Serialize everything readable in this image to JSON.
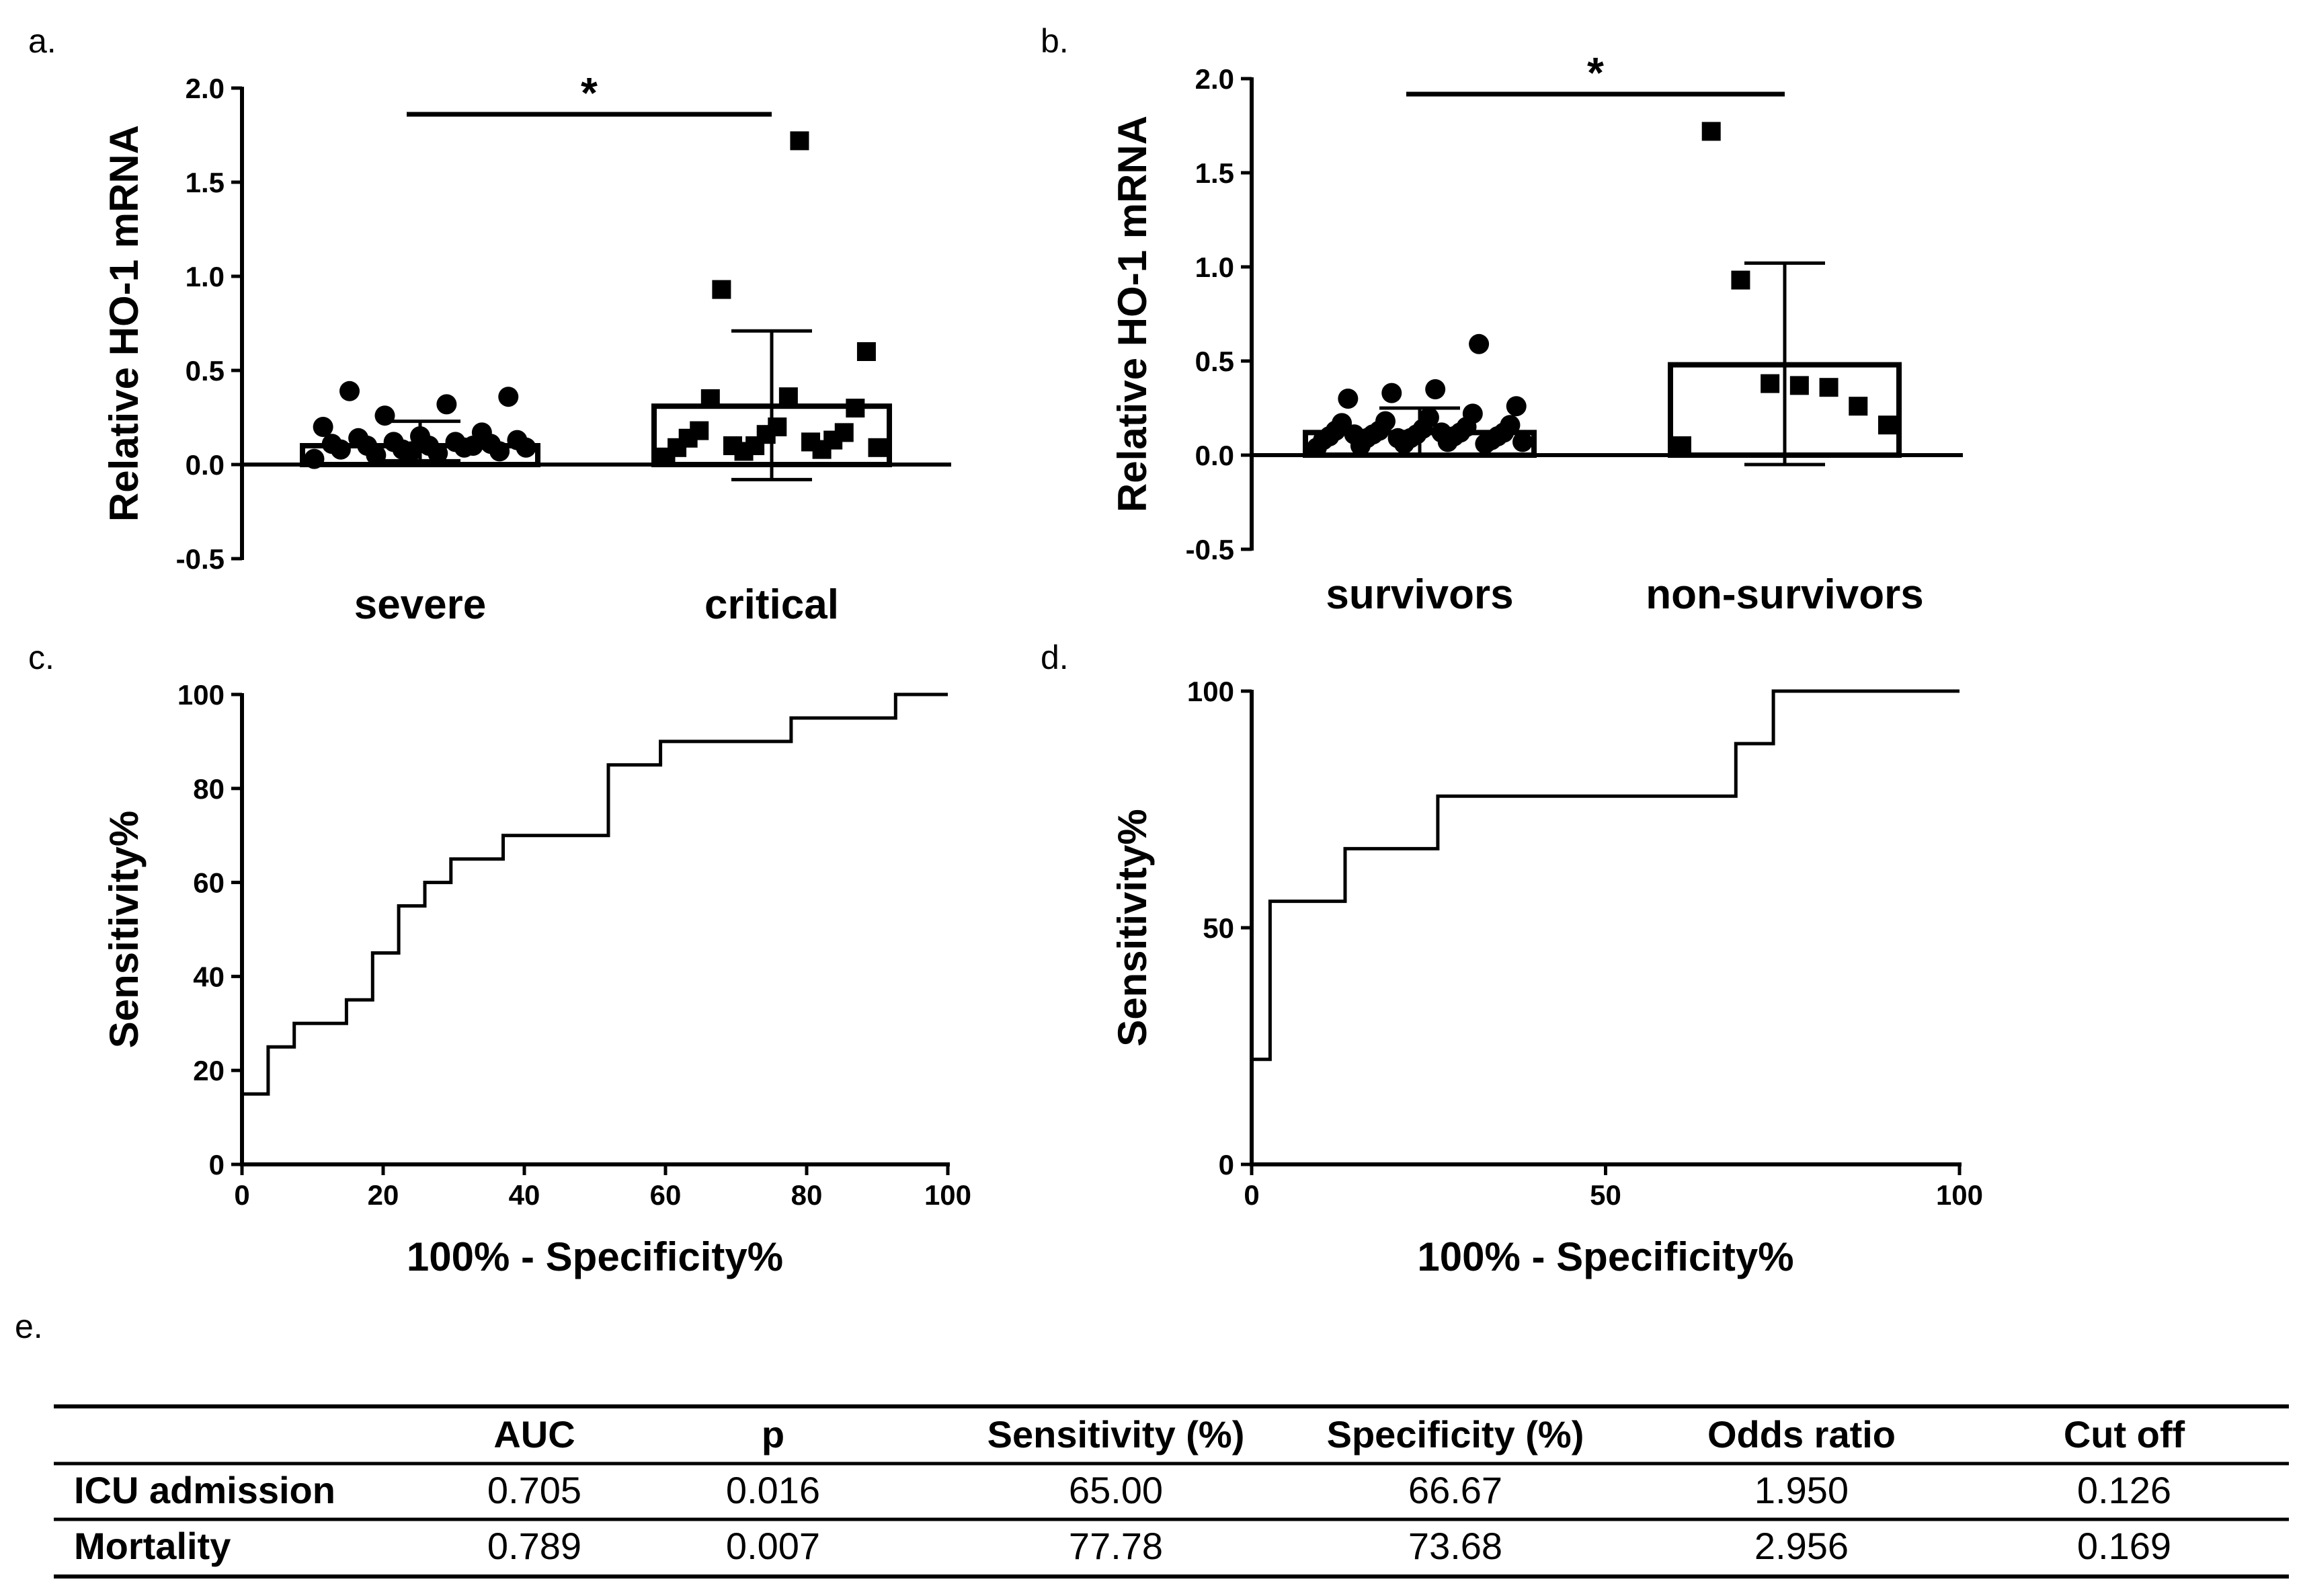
{
  "panels": {
    "a": "a.",
    "b": "b.",
    "c": "c.",
    "d": "d.",
    "e": "e."
  },
  "chart_data": [
    {
      "panel": "a",
      "type": "scatter",
      "title": "",
      "ylabel": "Relative HO-1 mRNA",
      "categories": [
        "severe",
        "critical"
      ],
      "ylim": [
        -0.5,
        2.0
      ],
      "yticks": [
        "2.0",
        "1.5",
        "1.0",
        "0.5",
        "0.0",
        "-0.5"
      ],
      "bar_means": [
        0.1,
        0.31
      ],
      "sd_upper": [
        0.23,
        0.71
      ],
      "sd_lower": [
        0.02,
        -0.08
      ],
      "significance": "*",
      "series": [
        {
          "name": "severe",
          "marker": "circle",
          "values": [
            0.03,
            0.05,
            0.06,
            0.07,
            0.08,
            0.08,
            0.09,
            0.09,
            0.1,
            0.1,
            0.11,
            0.11,
            0.12,
            0.12,
            0.13,
            0.14,
            0.15,
            0.17,
            0.2,
            0.26,
            0.32,
            0.36,
            0.39,
            0.07,
            0.1
          ]
        },
        {
          "name": "critical",
          "marker": "square",
          "values": [
            0.04,
            0.07,
            0.08,
            0.09,
            0.1,
            0.13,
            0.14,
            0.16,
            0.17,
            0.18,
            0.2,
            0.3,
            0.35,
            0.36,
            0.6,
            0.93,
            1.72,
            0.09,
            0.1,
            0.12
          ]
        }
      ]
    },
    {
      "panel": "b",
      "type": "scatter",
      "title": "",
      "ylabel": "Relative HO-1 mRNA",
      "categories": [
        "survivors",
        "non-survivors"
      ],
      "ylim": [
        -0.5,
        2.0
      ],
      "yticks": [
        "2.0",
        "1.5",
        "1.0",
        "0.5",
        "0.0",
        "-0.5"
      ],
      "bar_means": [
        0.12,
        0.48
      ],
      "sd_upper": [
        0.25,
        1.02
      ],
      "sd_lower": [
        0.0,
        -0.05
      ],
      "significance": "*",
      "series": [
        {
          "name": "survivors",
          "marker": "circle",
          "values": [
            0.04,
            0.05,
            0.06,
            0.07,
            0.08,
            0.08,
            0.09,
            0.09,
            0.1,
            0.1,
            0.1,
            0.11,
            0.11,
            0.12,
            0.12,
            0.13,
            0.13,
            0.14,
            0.15,
            0.16,
            0.17,
            0.18,
            0.2,
            0.22,
            0.26,
            0.3,
            0.33,
            0.35,
            0.59,
            0.07,
            0.11,
            0.09,
            0.12,
            0.06
          ]
        },
        {
          "name": "non-survivors",
          "marker": "square",
          "values": [
            0.05,
            0.16,
            0.26,
            0.36,
            0.37,
            0.38,
            0.93,
            1.72
          ]
        }
      ]
    },
    {
      "panel": "c",
      "type": "line",
      "title": "",
      "xlabel": "100% - Specificity%",
      "ylabel": "Sensitivity%",
      "xlim": [
        0,
        100
      ],
      "ylim": [
        0,
        100
      ],
      "xticks": [
        "0",
        "20",
        "40",
        "60",
        "80",
        "100"
      ],
      "yticks": [
        "100",
        "80",
        "60",
        "40",
        "20",
        "0"
      ],
      "x": [
        0,
        3.7,
        3.7,
        7.4,
        7.4,
        14.8,
        14.8,
        18.5,
        18.5,
        22.2,
        22.2,
        25.9,
        25.9,
        29.6,
        29.6,
        37,
        37,
        51.9,
        51.9,
        59.3,
        59.3,
        77.8,
        77.8,
        92.6,
        92.6,
        100
      ],
      "y": [
        15,
        15,
        25,
        25,
        30,
        30,
        35,
        35,
        45,
        45,
        55,
        55,
        60,
        60,
        65,
        65,
        70,
        70,
        85,
        85,
        90,
        90,
        95,
        95,
        100,
        100
      ]
    },
    {
      "panel": "d",
      "type": "line",
      "title": "",
      "xlabel": "100% - Specificity%",
      "ylabel": "Sensitivity%",
      "xlim": [
        0,
        100
      ],
      "ylim": [
        0,
        100
      ],
      "xticks": [
        "0",
        "50",
        "100"
      ],
      "yticks": [
        "100",
        "50",
        "0"
      ],
      "x": [
        0,
        0,
        2.6,
        2.6,
        13.2,
        13.2,
        26.3,
        26.3,
        68.4,
        68.4,
        73.7,
        73.7,
        100
      ],
      "y": [
        0,
        22.2,
        22.2,
        55.6,
        55.6,
        66.7,
        66.7,
        77.8,
        77.8,
        88.9,
        88.9,
        100,
        100
      ]
    },
    {
      "panel": "e",
      "type": "table",
      "columns": [
        "",
        "AUC",
        "p",
        "Sensitivity (%)",
        "Specificity (%)",
        "Odds ratio",
        "Cut off"
      ],
      "rows": [
        [
          "ICU admission",
          "0.705",
          "0.016",
          "65.00",
          "66.67",
          "1.950",
          "0.126"
        ],
        [
          "Mortality",
          "0.789",
          "0.007",
          "77.78",
          "73.68",
          "2.956",
          "0.169"
        ]
      ]
    }
  ]
}
